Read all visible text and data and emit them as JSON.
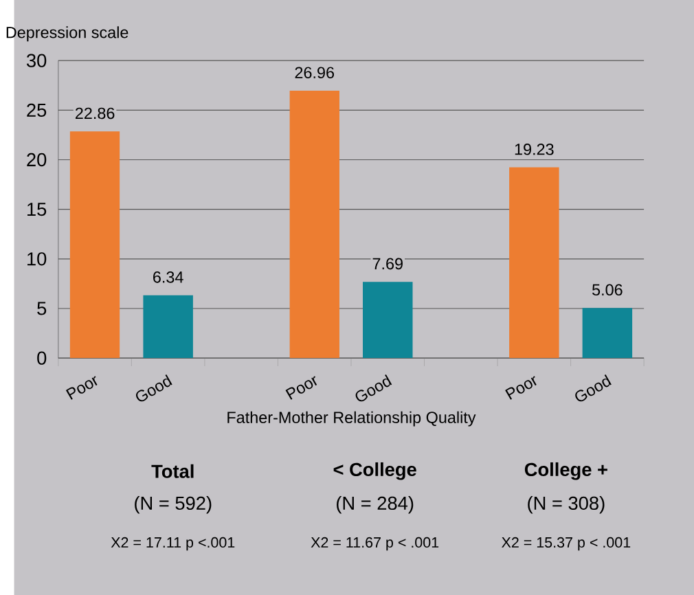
{
  "chart_data": {
    "type": "bar",
    "ylabel": "Depression scale",
    "xlabel": "Father-Mother Relationship Quality",
    "categories": [
      "Poor",
      "Good",
      null,
      "Poor",
      "Good",
      null,
      "Poor",
      "Good"
    ],
    "values": [
      22.86,
      6.34,
      null,
      26.96,
      7.69,
      null,
      19.23,
      5.06
    ],
    "colors": [
      "#ed7d31",
      "#0f8696",
      null,
      "#ed7d31",
      "#0f8696",
      null,
      "#ed7d31",
      "#0f8696"
    ],
    "ylim": [
      0,
      30
    ],
    "yticks": [
      0,
      5,
      10,
      15,
      20,
      25,
      30
    ],
    "grid": "y",
    "data_labels": true,
    "annotations": [
      "Total",
      "(N = 592)",
      "X2 = 17.11  p <.001",
      "< College",
      "(N = 284)",
      "X2 = 11.67  p < .001",
      "College +",
      "(N = 308)",
      "X2 = 15.37  p < .001"
    ]
  }
}
